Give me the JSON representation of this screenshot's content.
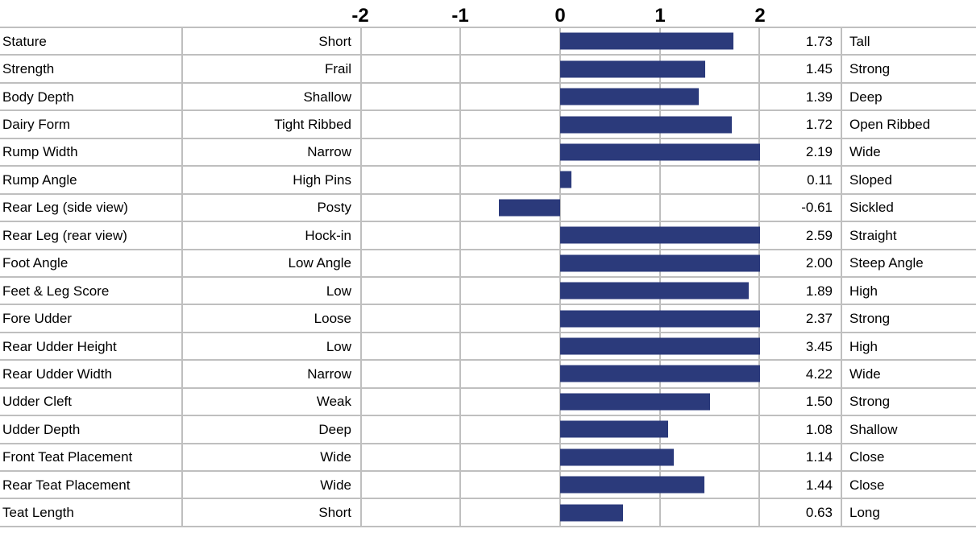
{
  "colors": {
    "bar": "#2B3A7B",
    "grid_border": "#BFBFBF",
    "text": "#000000",
    "background": "#FFFFFF"
  },
  "chart_data": {
    "type": "bar",
    "orientation": "horizontal",
    "title": "",
    "xlim": [
      -2,
      2
    ],
    "tick_labels": [
      "-2",
      "-1",
      "0",
      "1",
      "2"
    ],
    "grid": true,
    "bar_color": "#2B3A7B",
    "categories": [
      "Stature",
      "Strength",
      "Body Depth",
      "Dairy Form",
      "Rump Width",
      "Rump Angle",
      "Rear Leg (side view)",
      "Rear Leg (rear view)",
      "Foot Angle",
      "Feet & Leg Score",
      "Fore Udder",
      "Rear Udder Height",
      "Rear Udder Width",
      "Udder Cleft",
      "Udder Depth",
      "Front Teat Placement",
      "Rear Teat Placement",
      "Teat Length"
    ],
    "low_labels": [
      "Short",
      "Frail",
      "Shallow",
      "Tight Ribbed",
      "Narrow",
      "High Pins",
      "Posty",
      "Hock-in",
      "Low Angle",
      "Low",
      "Loose",
      "Low",
      "Narrow",
      "Weak",
      "Deep",
      "Wide",
      "Wide",
      "Short"
    ],
    "high_labels": [
      "Tall",
      "Strong",
      "Deep",
      "Open Ribbed",
      "Wide",
      "Sloped",
      "Sickled",
      "Straight",
      "Steep Angle",
      "High",
      "Strong",
      "High",
      "Wide",
      "Strong",
      "Shallow",
      "Close",
      "Close",
      "Long"
    ],
    "values": [
      1.73,
      1.45,
      1.39,
      1.72,
      2.19,
      0.11,
      -0.61,
      2.59,
      2.0,
      1.89,
      2.37,
      3.45,
      4.22,
      1.5,
      1.08,
      1.14,
      1.44,
      0.63
    ],
    "value_labels": [
      "1.73",
      "1.45",
      "1.39",
      "1.72",
      "2.19",
      "0.11",
      "-0.61",
      "2.59",
      "2.00",
      "1.89",
      "2.37",
      "3.45",
      "4.22",
      "1.50",
      "1.08",
      "1.14",
      "1.44",
      "0.63"
    ]
  }
}
